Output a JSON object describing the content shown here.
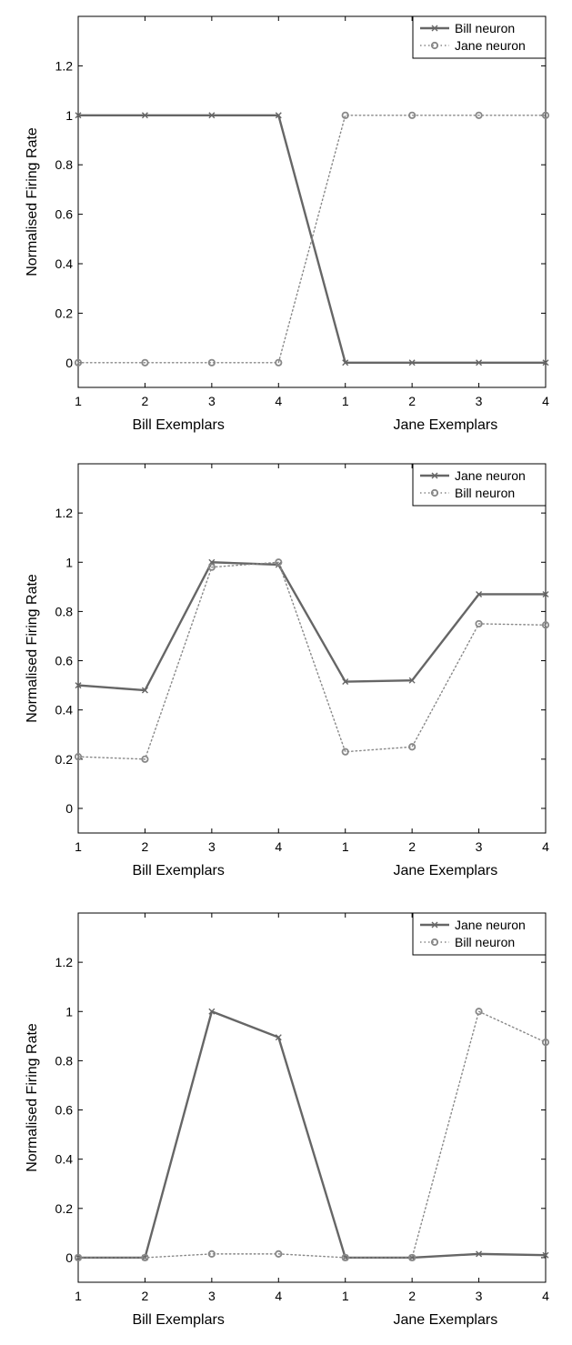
{
  "chart_data": [
    {
      "type": "line",
      "title": "",
      "ylabel": "Normalised Firing Rate",
      "xgroup_labels": [
        "Bill Exemplars",
        "Jane Exemplars"
      ],
      "x": [
        1,
        2,
        3,
        4,
        5,
        6,
        7,
        8
      ],
      "xtick_labels": [
        "1",
        "2",
        "3",
        "4",
        "1",
        "2",
        "3",
        "4"
      ],
      "yticks": [
        "0",
        "0.2",
        "0.4",
        "0.6",
        "0.8",
        "1",
        "1.2"
      ],
      "ylim": [
        -0.1,
        1.4
      ],
      "grid": false,
      "legend_position": "top-right",
      "series": [
        {
          "name": "Bill neuron",
          "style": "solid",
          "marker": "x",
          "color": "#666666",
          "values": [
            1,
            1,
            1,
            1,
            0,
            0,
            0,
            0
          ]
        },
        {
          "name": "Jane neuron",
          "style": "dotted",
          "marker": "o",
          "color": "#888888",
          "values": [
            0,
            0,
            0,
            0,
            1,
            1,
            1,
            1
          ]
        }
      ]
    },
    {
      "type": "line",
      "title": "",
      "ylabel": "Normalised Firing Rate",
      "xgroup_labels": [
        "Bill Exemplars",
        "Jane Exemplars"
      ],
      "x": [
        1,
        2,
        3,
        4,
        5,
        6,
        7,
        8
      ],
      "xtick_labels": [
        "1",
        "2",
        "3",
        "4",
        "1",
        "2",
        "3",
        "4"
      ],
      "yticks": [
        "0",
        "0.2",
        "0.4",
        "0.6",
        "0.8",
        "1",
        "1.2"
      ],
      "ylim": [
        -0.1,
        1.4
      ],
      "grid": false,
      "legend_position": "top-right",
      "series": [
        {
          "name": "Jane neuron",
          "style": "solid",
          "marker": "x",
          "color": "#666666",
          "values": [
            0.5,
            0.48,
            1.0,
            0.99,
            0.515,
            0.52,
            0.87,
            0.87
          ]
        },
        {
          "name": "Bill neuron",
          "style": "dotted",
          "marker": "o",
          "color": "#888888",
          "values": [
            0.21,
            0.2,
            0.98,
            1.0,
            0.23,
            0.25,
            0.75,
            0.745
          ]
        }
      ]
    },
    {
      "type": "line",
      "title": "",
      "ylabel": "Normalised Firing Rate",
      "xgroup_labels": [
        "Bill Exemplars",
        "Jane Exemplars"
      ],
      "x": [
        1,
        2,
        3,
        4,
        5,
        6,
        7,
        8
      ],
      "xtick_labels": [
        "1",
        "2",
        "3",
        "4",
        "1",
        "2",
        "3",
        "4"
      ],
      "yticks": [
        "0",
        "0.2",
        "0.4",
        "0.6",
        "0.8",
        "1",
        "1.2"
      ],
      "ylim": [
        -0.1,
        1.4
      ],
      "grid": false,
      "legend_position": "top-right",
      "series": [
        {
          "name": "Jane neuron",
          "style": "solid",
          "marker": "x",
          "color": "#666666",
          "values": [
            0,
            0,
            1.0,
            0.895,
            0,
            0,
            0.015,
            0.01
          ]
        },
        {
          "name": "Bill neuron",
          "style": "dotted",
          "marker": "o",
          "color": "#888888",
          "values": [
            0,
            0,
            0.015,
            0.015,
            0,
            0,
            1.0,
            0.875
          ]
        }
      ]
    }
  ]
}
